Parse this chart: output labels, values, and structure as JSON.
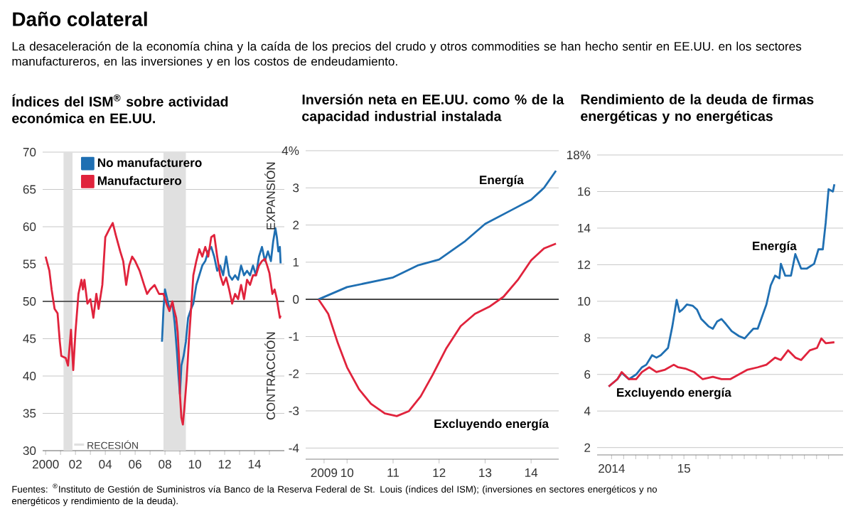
{
  "chart_data": [
    {
      "type": "other",
      "title": "Daño colateral",
      "subtitle": "La desaceleración de la economía china y la caída de los precios del crudo y otros commodities se han hecho sentir en EE.UU. en los sectores manufactureros, en las inversiones y en los costos de endeudamiento.",
      "annotations": [
        "Fuentes: $^{®}$Instituto de Gestión de Suministros vía Banco de la Reserva Federal de St. Louis (índices del ISM); (inversiones en sectores energéticos y no energéticos y rendimiento de la deuda)."
      ]
    },
    {
      "type": "line",
      "title": "Índices del ISM$^{®}$ sobre actividad económica en EE.UU.",
      "xlim": [
        1999.8,
        2016
      ],
      "ylim": [
        30,
        70
      ],
      "grid": "y",
      "legend": "top left",
      "xticks": [
        {
          "value": 2000,
          "label": "2000"
        },
        {
          "value": 2001,
          "label": null
        },
        {
          "value": 2002,
          "label": "02"
        },
        {
          "value": 2003,
          "label": null
        },
        {
          "value": 2004,
          "label": "04"
        },
        {
          "value": 2005,
          "label": null
        },
        {
          "value": 2006,
          "label": "06"
        },
        {
          "value": 2007,
          "label": null
        },
        {
          "value": 2008,
          "label": "08"
        },
        {
          "value": 2009,
          "label": null
        },
        {
          "value": 2010,
          "label": "10"
        },
        {
          "value": 2011,
          "label": null
        },
        {
          "value": 2012,
          "label": "12"
        },
        {
          "value": 2013,
          "label": null
        },
        {
          "value": 2014,
          "label": "14"
        },
        {
          "value": 2015,
          "label": null
        }
      ],
      "yticks": [
        30,
        35,
        40,
        45,
        50,
        55,
        60,
        65,
        70
      ],
      "ref_lines": [
        {
          "axis": "y",
          "value": 50,
          "color": "#333333"
        }
      ],
      "bands": [
        {
          "axis": "x",
          "from": 2001.2,
          "to": 2001.8,
          "label": "RECESIÓN",
          "color": "#e0e0e0"
        },
        {
          "axis": "x",
          "from": 2007.9,
          "to": 2009.4,
          "color": "#e0e0e0"
        }
      ],
      "annotations": [
        "EXPANSIÓN",
        "CONTRACCIÓN"
      ],
      "series": [
        {
          "name": "No manufacturero",
          "color": "#1f6fb2",
          "x": [
            2007.8,
            2007.9,
            2008.0,
            2008.15,
            2008.3,
            2008.5,
            2008.65,
            2008.8,
            2008.9,
            2009.0,
            2009.1,
            2009.25,
            2009.4,
            2009.55,
            2009.75,
            2009.9,
            2010.1,
            2010.3,
            2010.5,
            2010.7,
            2010.9,
            2011.1,
            2011.3,
            2011.5,
            2011.7,
            2011.9,
            2012.1,
            2012.3,
            2012.5,
            2012.7,
            2012.9,
            2013.1,
            2013.3,
            2013.5,
            2013.7,
            2013.9,
            2014.1,
            2014.3,
            2014.5,
            2014.7,
            2014.9,
            2015.1,
            2015.25,
            2015.4,
            2015.5,
            2015.6,
            2015.7,
            2015.75
          ],
          "values": [
            44.6,
            49,
            51.6,
            50.3,
            49,
            49.7,
            47.1,
            43.3,
            40.2,
            37.6,
            41.4,
            42.7,
            44.6,
            47.8,
            49,
            49.7,
            52.2,
            53.5,
            54.8,
            55.4,
            56.7,
            57.3,
            56,
            54.1,
            54.8,
            53.5,
            56,
            53.5,
            52.9,
            53.5,
            52.9,
            54.8,
            53.5,
            54.1,
            53.5,
            54.8,
            53.5,
            56,
            57.3,
            55.4,
            56.7,
            55.4,
            58,
            59.8,
            58.6,
            56.7,
            57.3,
            55.1
          ]
        },
        {
          "name": "Manufacturero",
          "color": "#e0233c",
          "x": [
            2000.0,
            2000.25,
            2000.4,
            2000.6,
            2000.8,
            2000.95,
            2001.05,
            2001.35,
            2001.5,
            2001.7,
            2001.85,
            2002.0,
            2002.2,
            2002.4,
            2002.5,
            2002.6,
            2002.8,
            2003.0,
            2003.2,
            2003.4,
            2003.55,
            2003.8,
            2004.0,
            2004.3,
            2004.5,
            2004.7,
            2005.0,
            2005.2,
            2005.4,
            2005.6,
            2005.8,
            2006.0,
            2006.3,
            2006.6,
            2006.8,
            2007.0,
            2007.3,
            2007.6,
            2007.9,
            2008.1,
            2008.3,
            2008.5,
            2008.6,
            2008.75,
            2008.85,
            2008.95,
            2009.0,
            2009.1,
            2009.2,
            2009.3,
            2009.45,
            2009.6,
            2009.75,
            2009.9,
            2010.1,
            2010.3,
            2010.5,
            2010.7,
            2010.9,
            2011.1,
            2011.3,
            2011.5,
            2011.7,
            2011.9,
            2012.1,
            2012.3,
            2012.5,
            2012.7,
            2012.9,
            2013.1,
            2013.3,
            2013.5,
            2013.7,
            2013.9,
            2014.1,
            2014.3,
            2014.5,
            2014.7,
            2014.85,
            2015.0,
            2015.2,
            2015.35,
            2015.5,
            2015.6,
            2015.7,
            2015.75
          ],
          "values": [
            56.0,
            54.1,
            51.6,
            49,
            48.4,
            44.6,
            42.7,
            42.4,
            41.4,
            46.2,
            40.8,
            45.9,
            51,
            52.9,
            51.6,
            52.9,
            49.7,
            50.3,
            47.8,
            51,
            49,
            52.2,
            58.6,
            59.8,
            60.5,
            58.9,
            56.7,
            55.4,
            52.2,
            54.8,
            56.0,
            55.4,
            54.1,
            52.2,
            51,
            51.6,
            52.2,
            51,
            51,
            49.7,
            48.7,
            50,
            49,
            47.8,
            45.9,
            42.1,
            37.6,
            34.4,
            33.5,
            35.7,
            39.5,
            44.6,
            49,
            53.5,
            55.4,
            57,
            56,
            57.3,
            56,
            58.6,
            58.9,
            56,
            53.5,
            52.2,
            53.2,
            51.6,
            49.7,
            51,
            50.3,
            52.2,
            50.3,
            52.9,
            52.2,
            53.5,
            53.5,
            54.8,
            55.4,
            55.7,
            54.8,
            53.8,
            51,
            51.6,
            50.3,
            49,
            47.8,
            48.1
          ]
        }
      ]
    },
    {
      "type": "line",
      "title": "Inversión neta en EE.UU. como % de la capacidad industrial instalada",
      "xlim": [
        2009.1,
        2014.6
      ],
      "ylim": [
        -4.3,
        4
      ],
      "grid": "y",
      "xticks": [
        {
          "value": 2009.5,
          "label": "2009"
        },
        {
          "value": 2010,
          "label": "10"
        },
        {
          "value": 2011,
          "label": "11"
        },
        {
          "value": 2012,
          "label": "12"
        },
        {
          "value": 2013,
          "label": "13"
        },
        {
          "value": 2014,
          "label": "14"
        }
      ],
      "yticks": [
        -4,
        -3,
        -2,
        -1,
        0,
        1,
        2,
        3,
        {
          "value": 4,
          "label": "4%"
        }
      ],
      "ref_lines": [
        {
          "axis": "y",
          "value": 0,
          "color": "#333333"
        }
      ],
      "series": [
        {
          "name": "Energía",
          "color": "#1f6fb2",
          "x": [
            2009.38,
            2010,
            2011,
            2011.55,
            2012,
            2012.57,
            2013,
            2013.6,
            2014,
            2014.28,
            2014.54
          ],
          "values": [
            0,
            0.33,
            0.59,
            0.92,
            1.07,
            1.57,
            2.03,
            2.42,
            2.68,
            3.0,
            3.46
          ]
        },
        {
          "name": "Excluyendo energía",
          "color": "#e0233c",
          "x": [
            2009.38,
            2009.59,
            2009.8,
            2010,
            2010.26,
            2010.52,
            2010.82,
            2011.08,
            2011.34,
            2011.6,
            2011.86,
            2012.16,
            2012.47,
            2012.78,
            2013.09,
            2013.4,
            2013.71,
            2014,
            2014.28,
            2014.54
          ],
          "values": [
            0,
            -0.39,
            -1.18,
            -1.83,
            -2.42,
            -2.81,
            -3.07,
            -3.14,
            -3.01,
            -2.61,
            -2.03,
            -1.31,
            -0.72,
            -0.39,
            -0.2,
            0.07,
            0.52,
            1.05,
            1.37,
            1.5
          ]
        }
      ]
    },
    {
      "type": "line",
      "title": "Rendimiento de la deuda de firmas energéticas y no energéticas",
      "xlim": [
        2014.4,
        2016.1
      ],
      "ylim": [
        1.6,
        18
      ],
      "grid": "y",
      "xticks": [
        {
          "value": 2014.5833,
          "label": null
        },
        {
          "value": 2014.5,
          "label": "2014"
        },
        {
          "value": 2014.667,
          "label": null
        },
        {
          "value": 2014.75,
          "label": null
        },
        {
          "value": 2014.833,
          "label": null
        },
        {
          "value": 2014.917,
          "label": null
        },
        {
          "value": 2015,
          "label": "15"
        },
        {
          "value": 2015.083,
          "label": null
        },
        {
          "value": 2015.167,
          "label": null
        },
        {
          "value": 2015.25,
          "label": null
        },
        {
          "value": 2015.333,
          "label": null
        },
        {
          "value": 2015.417,
          "label": null
        },
        {
          "value": 2015.5,
          "label": null
        },
        {
          "value": 2015.583,
          "label": null
        },
        {
          "value": 2015.667,
          "label": null
        },
        {
          "value": 2015.75,
          "label": null
        },
        {
          "value": 2015.833,
          "label": null
        },
        {
          "value": 2015.917,
          "label": null
        },
        {
          "value": 2016.0,
          "label": null
        }
      ],
      "yticks": [
        2,
        4,
        6,
        8,
        10,
        12,
        14,
        16,
        {
          "value": 18,
          "label": "18%"
        }
      ],
      "series": [
        {
          "name": "Energía",
          "color": "#1f6fb2",
          "x": [
            2014.48,
            2014.54,
            2014.57,
            2014.62,
            2014.67,
            2014.71,
            2014.74,
            2014.78,
            2014.81,
            2014.84,
            2014.89,
            2014.92,
            2014.95,
            2014.97,
            2014.99,
            2015.02,
            2015.06,
            2015.09,
            2015.12,
            2015.17,
            2015.2,
            2015.23,
            2015.26,
            2015.29,
            2015.33,
            2015.38,
            2015.42,
            2015.45,
            2015.48,
            2015.51,
            2015.54,
            2015.57,
            2015.6,
            2015.63,
            2015.66,
            2015.67,
            2015.7,
            2015.74,
            2015.77,
            2015.81,
            2015.85,
            2015.9,
            2015.93,
            2015.96,
            2015.98,
            2016.0,
            2016.03,
            2016.04
          ],
          "values": [
            5.34,
            5.74,
            6.08,
            5.74,
            6.0,
            6.39,
            6.53,
            7.05,
            6.92,
            7.05,
            7.45,
            8.63,
            10.08,
            9.42,
            9.55,
            9.82,
            9.76,
            9.55,
            9.03,
            8.63,
            8.5,
            8.9,
            9.03,
            8.76,
            8.37,
            8.1,
            7.97,
            8.24,
            8.5,
            8.5,
            9.16,
            9.82,
            10.87,
            11.4,
            11.26,
            12.05,
            11.4,
            11.4,
            12.58,
            11.79,
            11.79,
            12.05,
            12.84,
            12.84,
            14.29,
            16.13,
            16.0,
            16.4
          ]
        },
        {
          "name": "Excluyendo energía",
          "color": "#e0233c",
          "x": [
            2014.48,
            2014.54,
            2014.57,
            2014.62,
            2014.67,
            2014.71,
            2014.76,
            2014.81,
            2014.87,
            2014.93,
            2014.96,
            2015.01,
            2015.07,
            2015.13,
            2015.2,
            2015.26,
            2015.32,
            2015.38,
            2015.44,
            2015.51,
            2015.57,
            2015.63,
            2015.67,
            2015.72,
            2015.77,
            2015.81,
            2015.87,
            2015.92,
            2015.95,
            2015.98,
            2016.04
          ],
          "values": [
            5.34,
            5.74,
            6.13,
            5.74,
            5.74,
            6.13,
            6.39,
            6.13,
            6.26,
            6.53,
            6.39,
            6.32,
            6.13,
            5.74,
            5.87,
            5.74,
            5.74,
            6.0,
            6.26,
            6.39,
            6.53,
            6.92,
            6.79,
            7.32,
            6.92,
            6.79,
            7.32,
            7.45,
            7.97,
            7.71,
            7.76
          ]
        }
      ]
    }
  ]
}
